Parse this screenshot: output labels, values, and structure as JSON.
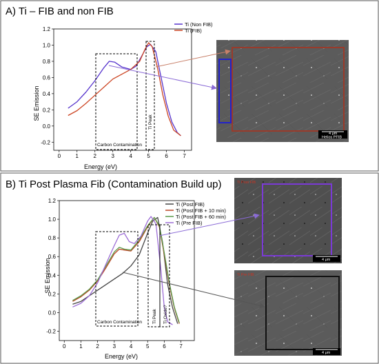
{
  "colors": {
    "series_a": [
      "#5533cc",
      "#cc4422"
    ],
    "series_b": [
      "#444444",
      "#bb4422",
      "#5a9a4a",
      "#9c6cd6"
    ],
    "sem_bg": "#5b5b5b",
    "box_purple": "#7a3ad6",
    "box_red": "#9a3a2a",
    "box_black": "#111111",
    "box_blue": "#2222cc",
    "arrow_red": "#c8806a",
    "arrow_purple": "#8a6ad6"
  },
  "chart_data": [
    {
      "type": "line",
      "panel_title": "A)  Ti – FIB and non FIB",
      "xlabel": "Energy (eV)",
      "ylabel": "SE Emission",
      "xlim": [
        -0.3,
        7.4
      ],
      "ylim": [
        -0.3,
        1.2
      ],
      "x_ticks": [
        0,
        1,
        2,
        3,
        4,
        5,
        6,
        7
      ],
      "y_ticks": [
        -0.2,
        0.0,
        0.2,
        0.4,
        0.6,
        0.8,
        1.0,
        1.2
      ],
      "y_tick_labels": [
        "-0.2",
        "0.0",
        "0.2",
        "0.4",
        "0.6",
        "0.8",
        "1.0",
        "1.2"
      ],
      "legend": "top-right",
      "series": [
        {
          "name": "Ti (Non FIB)",
          "x": [
            0.5,
            1.0,
            1.5,
            2.0,
            2.5,
            2.8,
            3.1,
            3.5,
            4.0,
            4.3,
            4.6,
            4.9,
            5.1,
            5.4,
            5.7,
            6.0,
            6.3,
            6.6,
            6.8
          ],
          "y": [
            0.22,
            0.3,
            0.42,
            0.56,
            0.72,
            0.8,
            0.79,
            0.73,
            0.7,
            0.74,
            0.86,
            0.98,
            1.01,
            0.92,
            0.6,
            0.28,
            0.05,
            -0.08,
            -0.12
          ]
        },
        {
          "name": "Ti (FIB)",
          "x": [
            0.5,
            1.0,
            1.5,
            2.0,
            2.5,
            3.0,
            3.5,
            4.0,
            4.5,
            4.8,
            5.0,
            5.2,
            5.5,
            5.8,
            6.1,
            6.4,
            6.8
          ],
          "y": [
            0.13,
            0.19,
            0.28,
            0.38,
            0.48,
            0.58,
            0.64,
            0.7,
            0.8,
            0.95,
            1.03,
            0.98,
            0.72,
            0.38,
            0.12,
            -0.05,
            -0.12
          ]
        }
      ],
      "annotations": [
        "Carbon Contamination",
        "Ti Peak"
      ]
    },
    {
      "type": "line",
      "panel_title": "B)  Ti Post Plasma Fib (Contamination Build up)",
      "xlabel": "Energy (eV)",
      "ylabel": "SE Emission",
      "xlim": [
        -0.3,
        7.8
      ],
      "ylim": [
        -0.3,
        1.2
      ],
      "x_ticks": [
        0,
        1,
        2,
        3,
        4,
        5,
        6,
        7
      ],
      "y_ticks": [
        -0.2,
        0.0,
        0.2,
        0.4,
        0.6,
        0.8,
        1.0,
        1.2
      ],
      "y_tick_labels": [
        "-0.2",
        "0.0",
        "0.2",
        "0.4",
        "0.6",
        "0.8",
        "1.0",
        "1.2"
      ],
      "legend": "top-right",
      "series": [
        {
          "name": "Ti (Post FIB)",
          "x": [
            0.5,
            1.0,
            1.5,
            2.0,
            2.5,
            3.0,
            3.5,
            4.0,
            4.5,
            5.0,
            5.3,
            5.6,
            5.9,
            6.2,
            6.5,
            6.8
          ],
          "y": [
            0.09,
            0.12,
            0.18,
            0.24,
            0.3,
            0.36,
            0.42,
            0.5,
            0.62,
            0.85,
            0.98,
            1.02,
            0.75,
            0.3,
            0.05,
            -0.12
          ]
        },
        {
          "name": "Ti (Post FIB + 10 min)",
          "x": [
            0.5,
            1.0,
            1.5,
            2.0,
            2.5,
            3.0,
            3.3,
            3.6,
            4.0,
            4.5,
            5.0,
            5.4,
            5.7,
            6.0,
            6.3,
            6.6,
            6.9
          ],
          "y": [
            0.12,
            0.17,
            0.24,
            0.34,
            0.48,
            0.63,
            0.68,
            0.67,
            0.66,
            0.76,
            0.92,
            1.02,
            0.92,
            0.62,
            0.3,
            0.05,
            -0.12
          ]
        },
        {
          "name": "Ti (Post FIB + 60 min)",
          "x": [
            0.5,
            1.0,
            1.5,
            2.0,
            2.5,
            3.0,
            3.3,
            3.6,
            4.0,
            4.5,
            5.0,
            5.4,
            5.7,
            6.0,
            6.3,
            6.6,
            6.9
          ],
          "y": [
            0.13,
            0.18,
            0.25,
            0.35,
            0.5,
            0.65,
            0.7,
            0.68,
            0.67,
            0.78,
            0.93,
            1.02,
            0.93,
            0.64,
            0.32,
            0.06,
            -0.11
          ]
        },
        {
          "name": "Ti (Pre FIB)",
          "x": [
            0.5,
            1.0,
            1.5,
            2.0,
            2.5,
            3.0,
            3.3,
            3.6,
            3.9,
            4.2,
            4.6,
            5.0,
            5.2,
            5.5,
            5.8,
            6.0,
            6.2,
            6.5
          ],
          "y": [
            0.06,
            0.1,
            0.18,
            0.32,
            0.52,
            0.72,
            0.83,
            0.85,
            0.76,
            0.74,
            0.82,
            0.98,
            1.03,
            0.95,
            0.45,
            0.05,
            -0.1,
            -0.13
          ]
        }
      ],
      "annotations": [
        "Carbon Contamination",
        "Ti Peak",
        "Ti Oxide?"
      ]
    }
  ],
  "panel_a": {
    "title": "A)  Ti – FIB and non FIB",
    "sem_scale": "4 μm",
    "sem_caption": "Helios PFIB"
  },
  "panel_b": {
    "title": "B)  Ti Post Plasma Fib (Contamination Build up)",
    "sem_top_label": "Ti Post FIB",
    "sem_bottom_label": "Ti Pre FIB",
    "sem_scale": "4 μm"
  }
}
